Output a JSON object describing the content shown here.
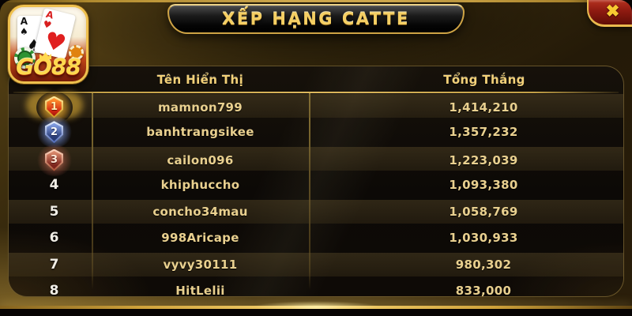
{
  "window": {
    "title": "XẾP HẠNG CATTE"
  },
  "icons": {
    "close": "✖"
  },
  "logo": {
    "brand": "GO88",
    "cards": {
      "left_rank": "A",
      "left_suit": "♠",
      "right_rank": "A",
      "right_suit": "♥"
    }
  },
  "table": {
    "columns": {
      "name": "Tên Hiển Thị",
      "total": "Tổng Thắng"
    },
    "rows": [
      {
        "rank": "1",
        "name": "mamnon799",
        "total": "1,414,210"
      },
      {
        "rank": "2",
        "name": "banhtrangsikee",
        "total": "1,357,232"
      },
      {
        "rank": "3",
        "name": "cailon096",
        "total": "1,223,039"
      },
      {
        "rank": "4",
        "name": "khiphuccho",
        "total": "1,093,380"
      },
      {
        "rank": "5",
        "name": "concho34mau",
        "total": "1,058,769"
      },
      {
        "rank": "6",
        "name": "998Aricape",
        "total": "1,030,933"
      },
      {
        "rank": "7",
        "name": "vyvy30111",
        "total": "980,302"
      },
      {
        "rank": "8",
        "name": "HitLelii",
        "total": "833,000"
      }
    ]
  },
  "colors": {
    "gold_accent": "#f5cf63",
    "deep_gold": "#c89a30",
    "close_red": "#8d1a10",
    "panel_brown": "#3d2e0e",
    "row_text": "#e9d08f",
    "table_bg": "#0c0906"
  }
}
